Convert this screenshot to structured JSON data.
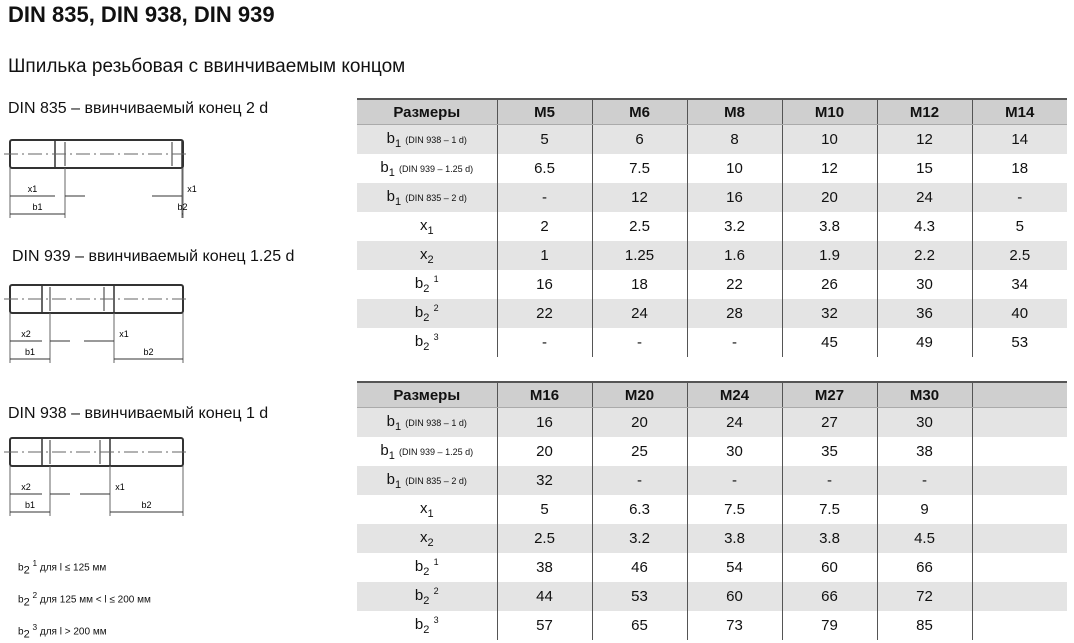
{
  "title": "DIN 835, DIN 938, DIN 939",
  "subtitle": "Шпилька резьбовая с ввинчиваемым концом",
  "drawings": [
    {
      "label": "DIN 835 – ввинчиваемый конец 2 d",
      "dims": [
        "x1",
        "x1",
        "b1",
        "b2"
      ]
    },
    {
      "label": "DIN 939 – ввинчиваемый конец 1.25 d",
      "dims": [
        "x2",
        "x1",
        "b1",
        "b2"
      ]
    },
    {
      "label": "DIN 938 – ввинчиваемый конец 1 d",
      "dims": [
        "x2",
        "x1",
        "b1",
        "b2"
      ]
    }
  ],
  "notes": [
    "b2 1 для l ≤ 125 мм",
    "b2 2 для 125 мм < l ≤ 200 мм",
    "b2 3 для l > 200 мм"
  ],
  "row_labels": [
    {
      "main": "b",
      "sub": "1",
      "cond": "(DIN 938 – 1 d)"
    },
    {
      "main": "b",
      "sub": "1",
      "cond": "(DIN 939 – 1.25 d)"
    },
    {
      "main": "b",
      "sub": "1",
      "cond": "(DIN 835 – 2 d)"
    },
    {
      "main": "x",
      "sub": "1",
      "cond": ""
    },
    {
      "main": "x",
      "sub": "2",
      "cond": ""
    },
    {
      "main": "b",
      "sub": "2",
      "sup": "1"
    },
    {
      "main": "b",
      "sub": "2",
      "sup": "2"
    },
    {
      "main": "b",
      "sub": "2",
      "sup": "3"
    }
  ],
  "tables": [
    {
      "header": [
        "Размеры",
        "M5",
        "M6",
        "M8",
        "M10",
        "M12",
        "M14"
      ],
      "rows": [
        [
          "5",
          "6",
          "8",
          "10",
          "12",
          "14"
        ],
        [
          "6.5",
          "7.5",
          "10",
          "12",
          "15",
          "18"
        ],
        [
          "-",
          "12",
          "16",
          "20",
          "24",
          "-"
        ],
        [
          "2",
          "2.5",
          "3.2",
          "3.8",
          "4.3",
          "5"
        ],
        [
          "1",
          "1.25",
          "1.6",
          "1.9",
          "2.2",
          "2.5"
        ],
        [
          "16",
          "18",
          "22",
          "26",
          "30",
          "34"
        ],
        [
          "22",
          "24",
          "28",
          "32",
          "36",
          "40"
        ],
        [
          "-",
          "-",
          "-",
          "45",
          "49",
          "53"
        ]
      ]
    },
    {
      "header": [
        "Размеры",
        "M16",
        "M20",
        "M24",
        "M27",
        "M30",
        ""
      ],
      "rows": [
        [
          "16",
          "20",
          "24",
          "27",
          "30",
          ""
        ],
        [
          "20",
          "25",
          "30",
          "35",
          "38",
          ""
        ],
        [
          "32",
          "-",
          "-",
          "-",
          "-",
          ""
        ],
        [
          "5",
          "6.3",
          "7.5",
          "7.5",
          "9",
          ""
        ],
        [
          "2.5",
          "3.2",
          "3.8",
          "3.8",
          "4.5",
          ""
        ],
        [
          "38",
          "46",
          "54",
          "60",
          "66",
          ""
        ],
        [
          "44",
          "53",
          "60",
          "66",
          "72",
          ""
        ],
        [
          "57",
          "65",
          "73",
          "79",
          "85",
          ""
        ]
      ]
    }
  ]
}
